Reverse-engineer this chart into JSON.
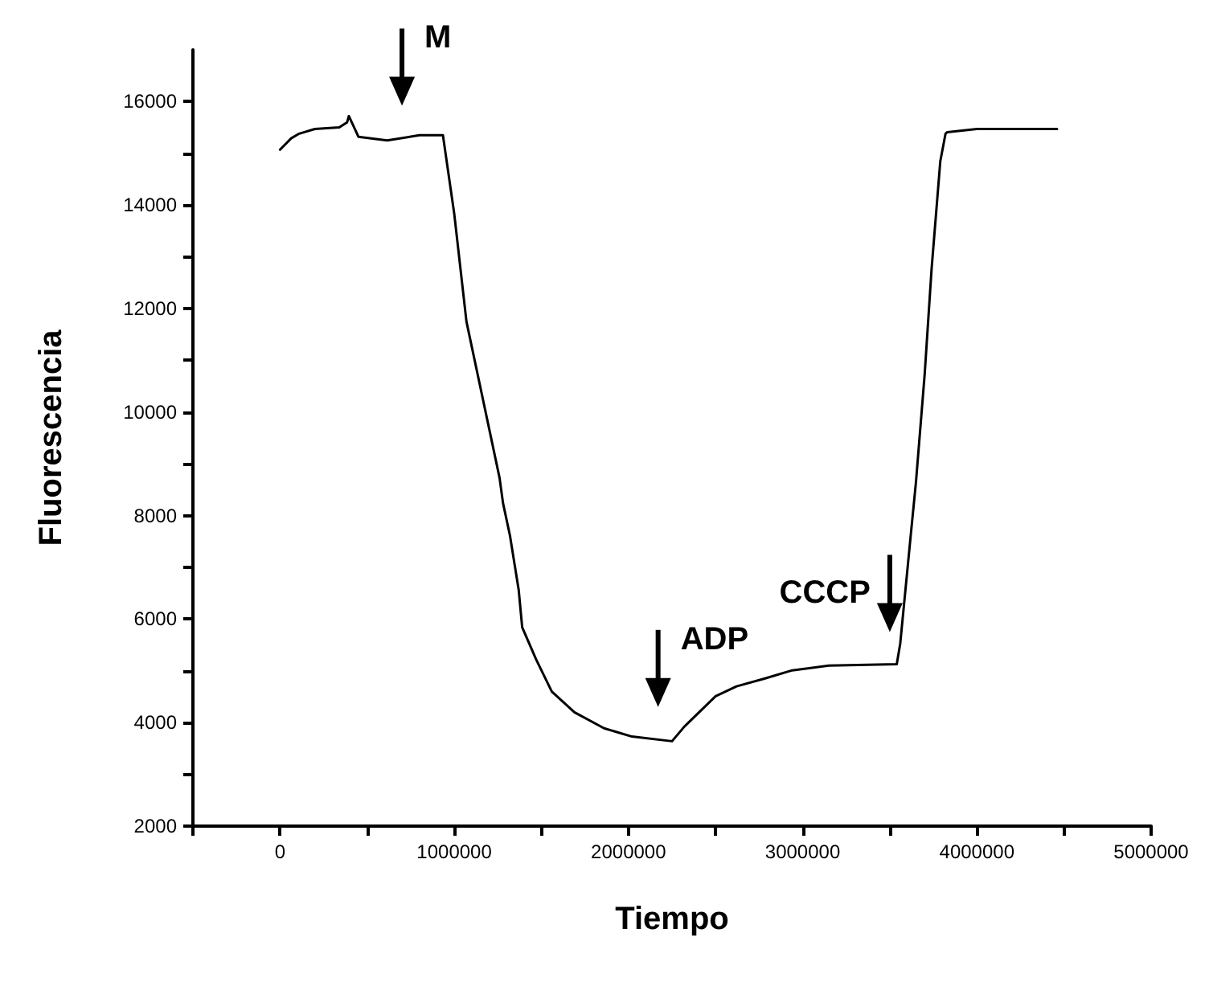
{
  "chart_data": {
    "type": "line",
    "xlabel": "Tiempo",
    "ylabel": "Fluorescencia",
    "xlim": [
      -500000,
      5000000
    ],
    "ylim": [
      2000,
      17000
    ],
    "xticks": [
      {
        "value": -500000,
        "label": null
      },
      0,
      {
        "value": 500000,
        "label": null
      },
      1000000,
      {
        "value": 1500000,
        "label": null
      },
      2000000,
      {
        "value": 2500000,
        "label": null
      },
      3000000,
      {
        "value": 3500000,
        "label": null
      },
      4000000,
      {
        "value": 4500000,
        "label": null
      },
      5000000
    ],
    "yticks": [
      2000,
      {
        "value": 3000,
        "label": null
      },
      4000,
      {
        "value": 5000,
        "label": null
      },
      6000,
      {
        "value": 7000,
        "label": null
      },
      8000,
      {
        "value": 9000,
        "label": null
      },
      10000,
      {
        "value": 11000,
        "label": null
      },
      12000,
      {
        "value": 13000,
        "label": null
      },
      14000,
      {
        "value": 15000,
        "label": null
      },
      16000
    ],
    "grid": false,
    "marker": "none",
    "line_style": "solid",
    "series": [
      {
        "color": "#000000",
        "x": [
          0,
          64000,
          110000,
          200000,
          340000,
          385000,
          395000,
          450000,
          615000,
          800000,
          935000,
          1000000,
          1070000,
          1260000,
          1280000,
          1320000,
          1370000,
          1390000,
          1470000,
          1560000,
          1690000,
          1860000,
          2020000,
          2250000,
          2320000,
          2500000,
          2620000,
          2780000,
          2940000,
          3150000,
          3540000,
          3560000,
          3620000,
          3650000,
          3700000,
          3740000,
          3790000,
          3820000,
          3830000,
          4000000,
          4460000
        ],
        "values": [
          15070,
          15290,
          15380,
          15470,
          15500,
          15600,
          15720,
          15320,
          15250,
          15350,
          15350,
          13830,
          11750,
          8730,
          8240,
          7610,
          6560,
          5840,
          5220,
          4600,
          4200,
          3890,
          3730,
          3640,
          3920,
          4510,
          4700,
          4850,
          5010,
          5100,
          5130,
          5530,
          7610,
          8640,
          10720,
          12770,
          14850,
          15380,
          15410,
          15470,
          15470
        ]
      }
    ],
    "annotations": [
      {
        "text": "M",
        "x": 700000,
        "y": 15300
      },
      {
        "text": "ADP",
        "x": 2170000,
        "y": 3680
      },
      {
        "text": "CCCP",
        "x": 3500000,
        "y": 5130
      }
    ]
  }
}
